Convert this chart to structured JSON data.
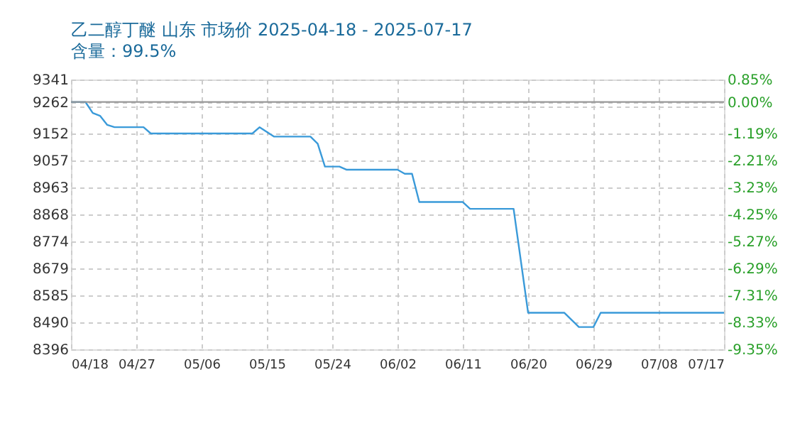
{
  "chart_data": {
    "type": "line",
    "title": "乙二醇丁醚 山东 市场价 2025-04-18 - 2025-07-17",
    "subtitle": "含量：99.5%",
    "x": [
      "2025-04-18",
      "2025-04-20",
      "2025-04-21",
      "2025-04-22",
      "2025-04-23",
      "2025-04-24",
      "2025-04-28",
      "2025-04-29",
      "2025-05-13",
      "2025-05-14",
      "2025-05-16",
      "2025-05-21",
      "2025-05-22",
      "2025-05-23",
      "2025-05-25",
      "2025-05-26",
      "2025-06-02",
      "2025-06-03",
      "2025-06-04",
      "2025-06-05",
      "2025-06-11",
      "2025-06-12",
      "2025-06-18",
      "2025-06-20",
      "2025-06-25",
      "2025-06-27",
      "2025-06-29",
      "2025-06-30",
      "2025-07-17"
    ],
    "series": [
      {
        "color": "#3a9ad9",
        "values": [
          9262,
          9262,
          9224,
          9214,
          9182,
          9174,
          9174,
          9152,
          9152,
          9174,
          9141,
          9141,
          9116,
          9036,
          9036,
          9025,
          9025,
          9011,
          9011,
          8912,
          8912,
          8888,
          8888,
          8524,
          8524,
          8474,
          8474,
          8524,
          8524
        ]
      }
    ],
    "xlim": [
      "2025-04-18",
      "2025-07-17"
    ],
    "xticks": [
      {
        "value": "2025-04-18",
        "label": "04/18"
      },
      {
        "value": "2025-04-27",
        "label": "04/27"
      },
      {
        "value": "2025-05-06",
        "label": "05/06"
      },
      {
        "value": "2025-05-15",
        "label": "05/15"
      },
      {
        "value": "2025-05-24",
        "label": "05/24"
      },
      {
        "value": "2025-06-02",
        "label": "06/02"
      },
      {
        "value": "2025-06-11",
        "label": "06/11"
      },
      {
        "value": "2025-06-20",
        "label": "06/20"
      },
      {
        "value": "2025-06-29",
        "label": "06/29"
      },
      {
        "value": "2025-07-08",
        "label": "07/08"
      },
      {
        "value": "2025-07-17",
        "label": "07/17"
      }
    ],
    "ylim": [
      8396,
      9341
    ],
    "yticks": [
      9341,
      {
        "value": 9262,
        "label": "9262"
      },
      {
        "value": 9246.5,
        "label": null
      },
      9152,
      {
        "value": 9057.5,
        "label": "9057"
      },
      8963,
      {
        "value": 8868.5,
        "label": "8868"
      },
      8774,
      {
        "value": 8679.5,
        "label": "8679"
      },
      8585,
      {
        "value": 8490.5,
        "label": "8490"
      },
      8396
    ],
    "y2lim": [
      -9.35,
      0.85
    ],
    "y2ticks": [
      {
        "value": 0.85,
        "label": "0.85%"
      },
      {
        "value": 0,
        "label": "0.00%"
      },
      {
        "value": -1.19,
        "label": "-1.19%"
      },
      {
        "value": -2.21,
        "label": "-2.21%"
      },
      {
        "value": -3.23,
        "label": "-3.23%"
      },
      {
        "value": -4.25,
        "label": "-4.25%"
      },
      {
        "value": -5.27,
        "label": "-5.27%"
      },
      {
        "value": -6.29,
        "label": "-6.29%"
      },
      {
        "value": -7.31,
        "label": "-7.31%"
      },
      {
        "value": -8.33,
        "label": "-8.33%"
      },
      {
        "value": -9.35,
        "label": "-9.35%"
      }
    ],
    "ref_lines": [
      {
        "axis": "y2",
        "value": 0,
        "color": "#999999",
        "line_style": "solid"
      }
    ],
    "grid": true,
    "marker": "none",
    "line_style": "solid"
  }
}
